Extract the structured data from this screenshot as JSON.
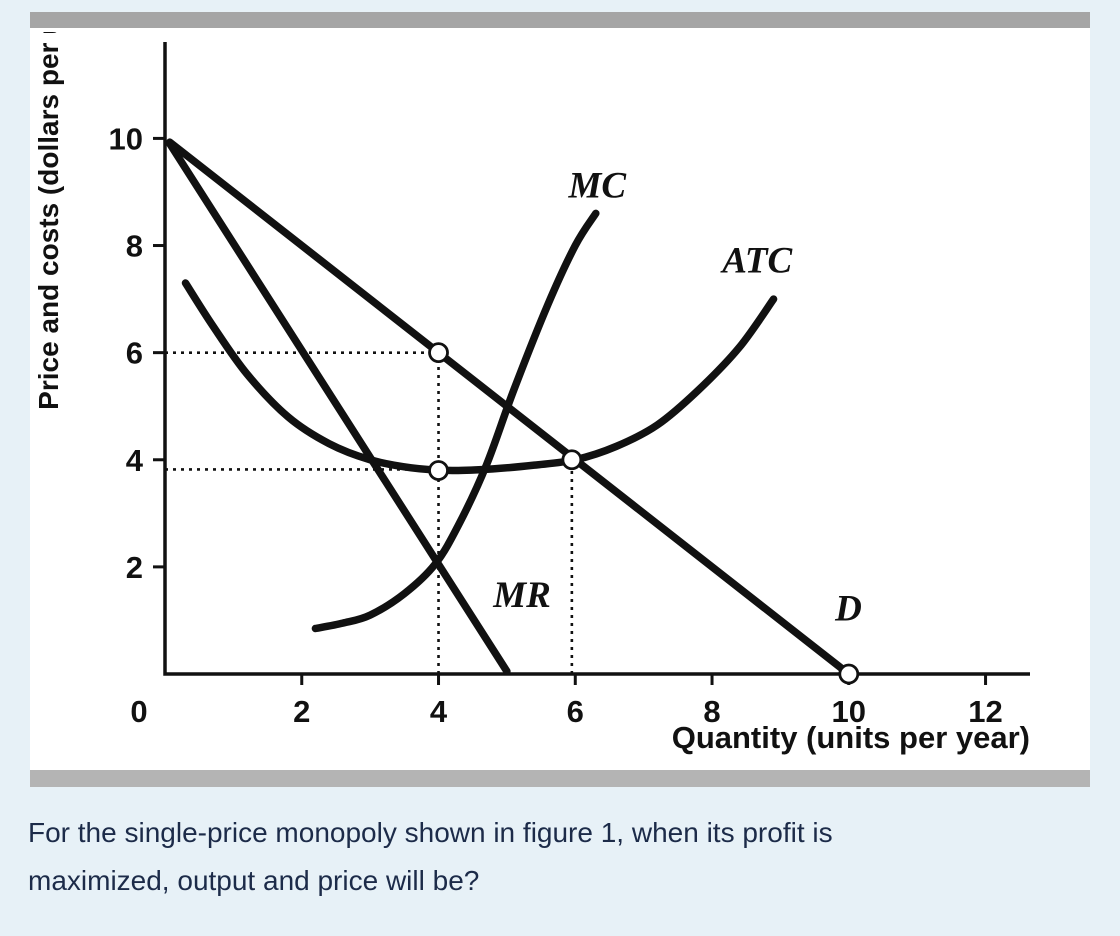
{
  "page": {
    "background": "#e7f1f7",
    "panel_background": "#ffffff",
    "top_bar_color": "#a5a5a5",
    "bottom_bar_color": "#b4b4b4",
    "text_color": "#1c2b49"
  },
  "question": {
    "lines": [
      "For the single-price monopoly shown in figure 1, when its profit is",
      "maximized, output and price will be?"
    ]
  },
  "chart_data": {
    "type": "line",
    "title": "",
    "xlabel": "Quantity (units per year)",
    "ylabel": "Price and costs (dollars per unit)",
    "xlim": [
      0,
      12.65
    ],
    "ylim": [
      0,
      11.8
    ],
    "xticks": [
      0,
      2,
      4,
      6,
      8,
      10,
      12
    ],
    "yticks": [
      2,
      4,
      6,
      8,
      10
    ],
    "line_color": "#111111",
    "grid": false,
    "legend": "curve labels drawn beside curves",
    "series": [
      {
        "name": "D",
        "label_pos": [
          9.8,
          1.0
        ],
        "smooth": false,
        "points": [
          [
            0.07,
            9.93
          ],
          [
            10,
            0
          ]
        ]
      },
      {
        "name": "MR",
        "label_pos": [
          4.8,
          1.25
        ],
        "smooth": false,
        "points": [
          [
            0.07,
            9.9
          ],
          [
            5.0,
            0.05
          ]
        ]
      },
      {
        "name": "MC",
        "label_pos": [
          5.9,
          8.9
        ],
        "smooth": true,
        "points": [
          [
            2.2,
            0.85
          ],
          [
            2.6,
            0.95
          ],
          [
            3.0,
            1.1
          ],
          [
            3.5,
            1.5
          ],
          [
            3.95,
            2.05
          ],
          [
            4.3,
            2.8
          ],
          [
            4.7,
            3.9
          ],
          [
            5.1,
            5.3
          ],
          [
            5.6,
            6.9
          ],
          [
            6.0,
            8.0
          ],
          [
            6.3,
            8.6
          ]
        ]
      },
      {
        "name": "ATC",
        "label_pos": [
          8.15,
          7.5
        ],
        "smooth": true,
        "points": [
          [
            0.3,
            7.3
          ],
          [
            0.7,
            6.5
          ],
          [
            1.2,
            5.6
          ],
          [
            1.8,
            4.8
          ],
          [
            2.4,
            4.3
          ],
          [
            3.0,
            4.0
          ],
          [
            3.6,
            3.85
          ],
          [
            4.2,
            3.8
          ],
          [
            4.8,
            3.83
          ],
          [
            5.4,
            3.9
          ],
          [
            6.0,
            4.0
          ],
          [
            6.6,
            4.25
          ],
          [
            7.2,
            4.65
          ],
          [
            7.8,
            5.3
          ],
          [
            8.4,
            6.1
          ],
          [
            8.9,
            7.0
          ]
        ]
      }
    ],
    "markers": [
      {
        "x": 4,
        "y": 6,
        "note": "profit-maximizing price on demand curve"
      },
      {
        "x": 4,
        "y": 3.8,
        "note": "ATC at output 4"
      },
      {
        "x": 5.95,
        "y": 4.0,
        "note": "demand crosses ATC near (6,4)"
      },
      {
        "x": 10,
        "y": 0,
        "note": "demand intercept"
      }
    ],
    "guides": [
      {
        "type": "h",
        "y": 6,
        "x0": 0,
        "x1": 4
      },
      {
        "type": "v",
        "x": 4,
        "y0": 0,
        "y1": 6
      },
      {
        "type": "h",
        "y": 3.82,
        "x0": 0,
        "x1": 3.97
      },
      {
        "type": "v",
        "x": 5.95,
        "y0": 0,
        "y1": 4.0
      }
    ]
  }
}
